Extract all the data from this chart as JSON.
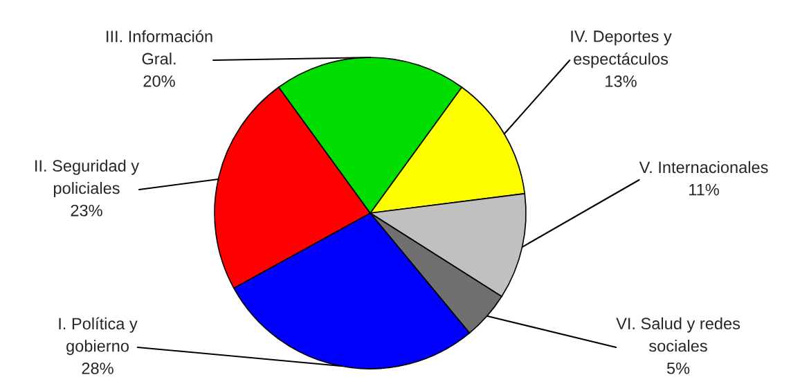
{
  "chart_data": {
    "type": "pie",
    "categories": [
      "IV. Deportes y\nespectáculos",
      "V. Internacionales",
      "VI. Salud y redes\nsociales",
      "I. Política y\ngobierno",
      "II. Seguridad y\npoliciales",
      "III. Información\nGral."
    ],
    "values": [
      13,
      11,
      5,
      28,
      23,
      20
    ],
    "value_labels": [
      "13%",
      "11%",
      "5%",
      "28%",
      "23%",
      "20%"
    ],
    "colors": [
      "#ffff00",
      "#c0c0c0",
      "#707070",
      "#0000ff",
      "#ff0000",
      "#00dd00"
    ],
    "legend": false
  }
}
